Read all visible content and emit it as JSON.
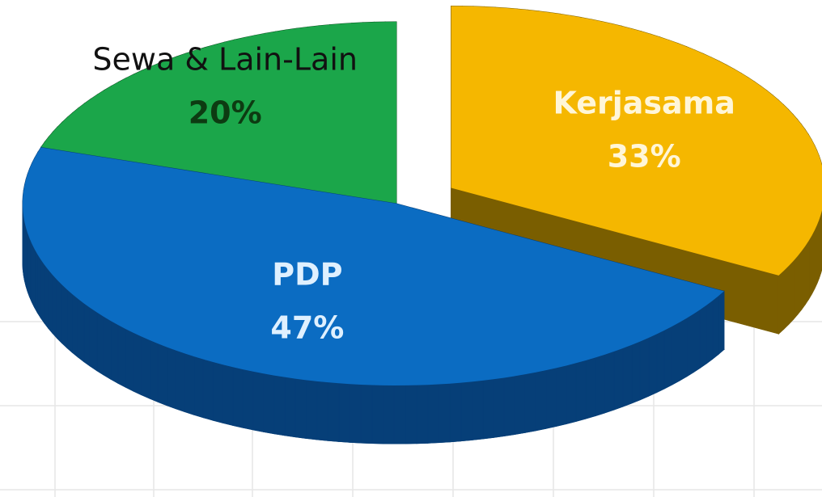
{
  "chart_data": {
    "type": "pie",
    "pie_3d": true,
    "categories": [
      "Kerjasama",
      "PDP",
      "Sewa & Lain-Lain"
    ],
    "values": [
      33,
      47,
      20
    ],
    "value_labels": [
      "33%",
      "47%",
      "20%"
    ],
    "colors": [
      "#f5b700",
      "#0b6cc2",
      "#1ba64a"
    ],
    "side_colors": [
      "#7a5e00",
      "#063f78",
      "#0a4f1f"
    ],
    "explode": [
      0.17,
      0,
      0
    ]
  }
}
